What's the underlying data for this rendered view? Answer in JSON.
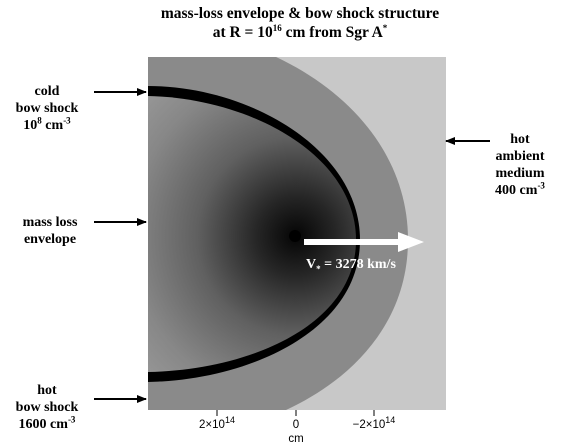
{
  "title": {
    "line1": "mass-loss envelope & bow shock structure",
    "line2_prefix": "at R = 10",
    "line2_exp": "16",
    "line2_mid": " cm from Sgr A",
    "line2_sup": "*"
  },
  "labels": {
    "cold_shock": {
      "line1": "cold",
      "line2": "bow shock",
      "line3_base": "10",
      "line3_exp": "8",
      "line3_unit": " cm",
      "line3_unit_exp": "-3"
    },
    "envelope": {
      "line1": "mass loss",
      "line2": "envelope"
    },
    "hot_shock": {
      "line1": "hot",
      "line2": "bow shock",
      "line3": "1600 cm",
      "line3_exp": "-3"
    },
    "ambient": {
      "line1": "hot",
      "line2": "ambient",
      "line3": "medium",
      "line4": "400 cm",
      "line4_exp": "-3"
    }
  },
  "velocity": {
    "prefix": "V",
    "sub": "*",
    "text": " = 3278 km/s"
  },
  "axis": {
    "ticks": [
      {
        "base": "2×10",
        "exp": "14"
      },
      {
        "base": "0",
        "exp": ""
      },
      {
        "base": "−2×10",
        "exp": "14"
      }
    ],
    "unit": "cm"
  },
  "colors": {
    "ambient": "#c8c8c8",
    "hot_shock": "#8a8a8a",
    "envelope_core": "#0a0a0a",
    "envelope_edge": "#9a9a9a",
    "cold_shell": "#000000",
    "arrow_star": "#ffffff"
  }
}
